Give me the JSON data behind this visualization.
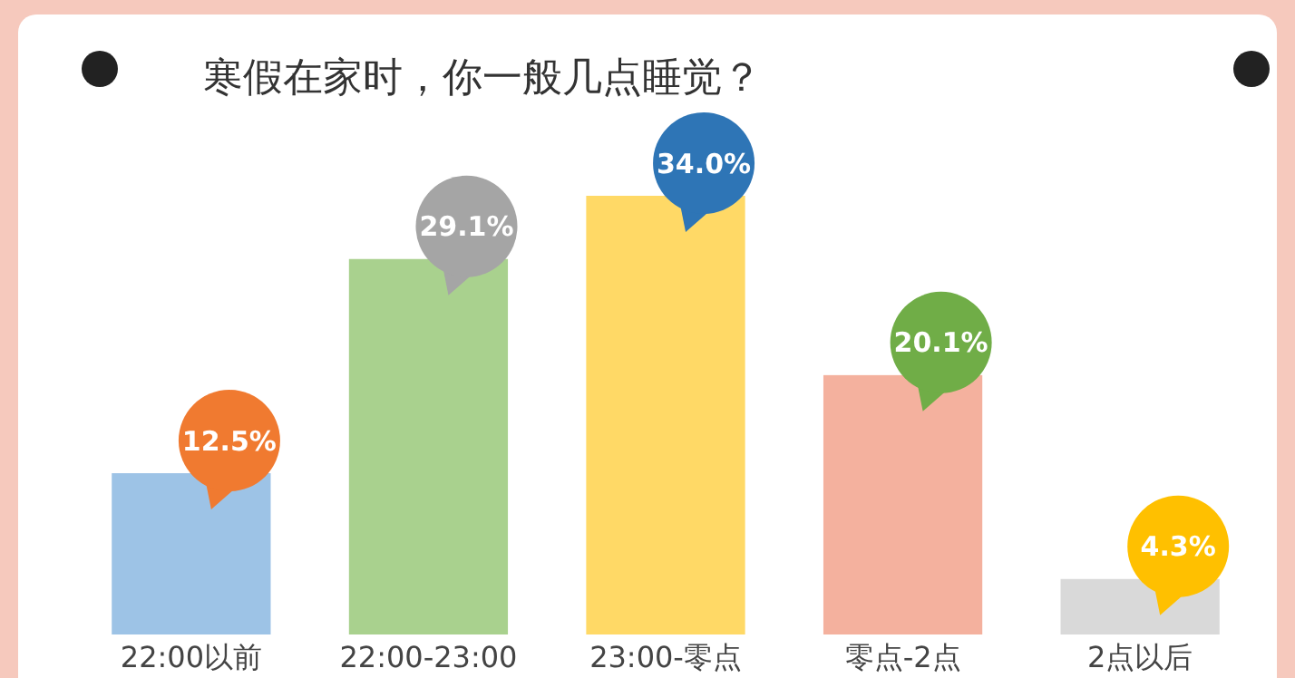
{
  "chart_data": {
    "type": "bar",
    "title": "寒假在家时，你一般几点睡觉？",
    "categories": [
      "22:00以前",
      "22:00-23:00",
      "23:00-零点",
      "零点-2点",
      "2点以后"
    ],
    "values": [
      12.5,
      29.1,
      34.0,
      20.1,
      4.3
    ],
    "value_labels": [
      "12.5%",
      "29.1%",
      "34.0%",
      "20.1%",
      "4.3%"
    ],
    "colors": [
      "#9dc3e6",
      "#a9d18e",
      "#ffd966",
      "#f4b19e",
      "#d9d9d9"
    ]
  }
}
